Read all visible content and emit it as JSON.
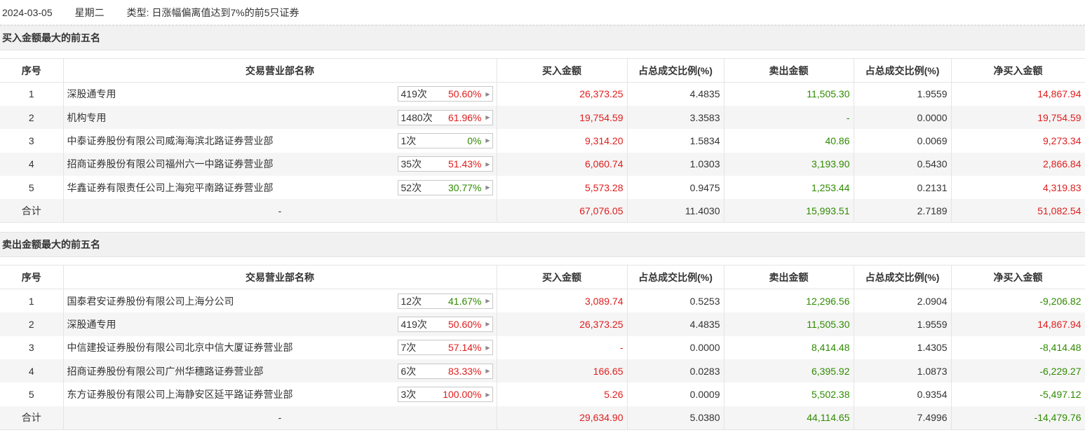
{
  "info": {
    "date": "2024-03-05",
    "weekday": "星期二",
    "type_label": "类型:",
    "type_value": "日涨幅偏离值达到7%的前5只证券"
  },
  "headers": [
    "序号",
    "交易营业部名称",
    "买入金额",
    "占总成交比例(%)",
    "卖出金额",
    "占总成交比例(%)",
    "净买入金额"
  ],
  "colors": {
    "red": "#e01c1c",
    "green": "#2f8a00",
    "dark": "#333333"
  },
  "sections": [
    {
      "title": "买入金额最大的前五名",
      "rows": [
        {
          "idx": "1",
          "name": "深股通专用",
          "count": "419次",
          "pct": "50.60%",
          "pct_color": "red",
          "buy": "26,373.25",
          "buy_color": "red",
          "buy_ratio": "4.4835",
          "sell": "11,505.30",
          "sell_color": "green",
          "sell_ratio": "1.9559",
          "net": "14,867.94",
          "net_color": "red"
        },
        {
          "idx": "2",
          "name": "机构专用",
          "count": "1480次",
          "pct": "61.96%",
          "pct_color": "red",
          "buy": "19,754.59",
          "buy_color": "red",
          "buy_ratio": "3.3583",
          "sell": "-",
          "sell_color": "green",
          "sell_ratio": "0.0000",
          "net": "19,754.59",
          "net_color": "red"
        },
        {
          "idx": "3",
          "name": "中泰证券股份有限公司威海海滨北路证券营业部",
          "count": "1次",
          "pct": "0%",
          "pct_color": "green",
          "buy": "9,314.20",
          "buy_color": "red",
          "buy_ratio": "1.5834",
          "sell": "40.86",
          "sell_color": "green",
          "sell_ratio": "0.0069",
          "net": "9,273.34",
          "net_color": "red"
        },
        {
          "idx": "4",
          "name": "招商证券股份有限公司福州六一中路证券营业部",
          "count": "35次",
          "pct": "51.43%",
          "pct_color": "red",
          "buy": "6,060.74",
          "buy_color": "red",
          "buy_ratio": "1.0303",
          "sell": "3,193.90",
          "sell_color": "green",
          "sell_ratio": "0.5430",
          "net": "2,866.84",
          "net_color": "red"
        },
        {
          "idx": "5",
          "name": "华鑫证券有限责任公司上海宛平南路证券营业部",
          "count": "52次",
          "pct": "30.77%",
          "pct_color": "green",
          "buy": "5,573.28",
          "buy_color": "red",
          "buy_ratio": "0.9475",
          "sell": "1,253.44",
          "sell_color": "green",
          "sell_ratio": "0.2131",
          "net": "4,319.83",
          "net_color": "red"
        }
      ],
      "total": {
        "label": "合计",
        "name": "-",
        "buy": "67,076.05",
        "buy_color": "red",
        "buy_ratio": "11.4030",
        "sell": "15,993.51",
        "sell_color": "green",
        "sell_ratio": "2.7189",
        "net": "51,082.54",
        "net_color": "red"
      }
    },
    {
      "title": "卖出金额最大的前五名",
      "rows": [
        {
          "idx": "1",
          "name": "国泰君安证券股份有限公司上海分公司",
          "count": "12次",
          "pct": "41.67%",
          "pct_color": "green",
          "buy": "3,089.74",
          "buy_color": "red",
          "buy_ratio": "0.5253",
          "sell": "12,296.56",
          "sell_color": "green",
          "sell_ratio": "2.0904",
          "net": "-9,206.82",
          "net_color": "green"
        },
        {
          "idx": "2",
          "name": "深股通专用",
          "count": "419次",
          "pct": "50.60%",
          "pct_color": "red",
          "buy": "26,373.25",
          "buy_color": "red",
          "buy_ratio": "4.4835",
          "sell": "11,505.30",
          "sell_color": "green",
          "sell_ratio": "1.9559",
          "net": "14,867.94",
          "net_color": "red"
        },
        {
          "idx": "3",
          "name": "中信建投证券股份有限公司北京中信大厦证券营业部",
          "count": "7次",
          "pct": "57.14%",
          "pct_color": "red",
          "buy": "-",
          "buy_color": "red",
          "buy_ratio": "0.0000",
          "sell": "8,414.48",
          "sell_color": "green",
          "sell_ratio": "1.4305",
          "net": "-8,414.48",
          "net_color": "green"
        },
        {
          "idx": "4",
          "name": "招商证券股份有限公司广州华穗路证券营业部",
          "count": "6次",
          "pct": "83.33%",
          "pct_color": "red",
          "buy": "166.65",
          "buy_color": "red",
          "buy_ratio": "0.0283",
          "sell": "6,395.92",
          "sell_color": "green",
          "sell_ratio": "1.0873",
          "net": "-6,229.27",
          "net_color": "green"
        },
        {
          "idx": "5",
          "name": "东方证券股份有限公司上海静安区延平路证券营业部",
          "count": "3次",
          "pct": "100.00%",
          "pct_color": "red",
          "buy": "5.26",
          "buy_color": "red",
          "buy_ratio": "0.0009",
          "sell": "5,502.38",
          "sell_color": "green",
          "sell_ratio": "0.9354",
          "net": "-5,497.12",
          "net_color": "green"
        }
      ],
      "total": {
        "label": "合计",
        "name": "-",
        "buy": "29,634.90",
        "buy_color": "red",
        "buy_ratio": "5.0380",
        "sell": "44,114.65",
        "sell_color": "green",
        "sell_ratio": "7.4996",
        "net": "-14,479.76",
        "net_color": "green"
      }
    }
  ]
}
